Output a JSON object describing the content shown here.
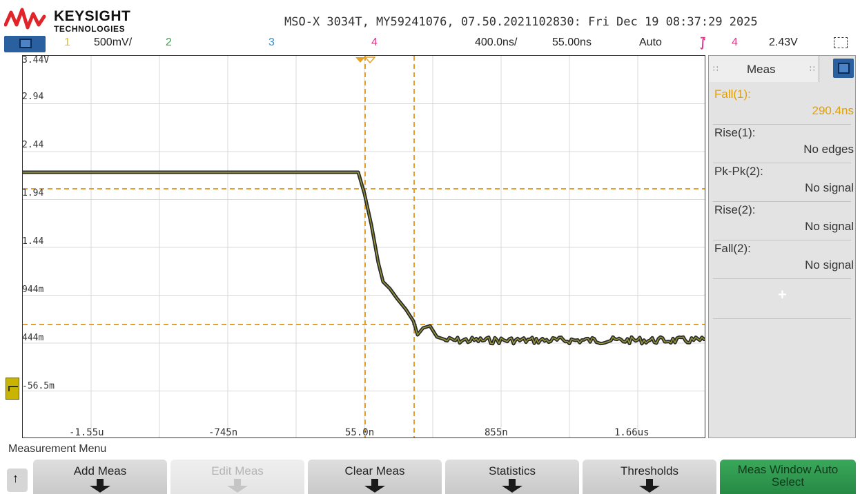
{
  "header": {
    "brand": "KEYSIGHT",
    "brand_sub": "TECHNOLOGIES",
    "device_info": "MSO-X 3034T, MY59241076, 07.50.2021102830: Fri Dec 19 08:37:29 2025"
  },
  "status_bar": {
    "ch1_label": "1",
    "ch1_scale": "500mV/",
    "ch2_label": "2",
    "ch3_label": "3",
    "ch4_label": "4",
    "timebase": "400.0ns/",
    "delay": "55.00ns",
    "trigger_mode": "Auto",
    "trigger_source": "4",
    "trigger_level": "2.43V"
  },
  "graticule": {
    "y_labels": [
      "3.44V",
      "2.94",
      "2.44",
      "1.94",
      "1.44",
      "944m",
      "444m",
      "-56.5m"
    ],
    "x_labels": [
      "-1.55u",
      "-745n",
      "55.0n",
      "855n",
      "1.66us"
    ]
  },
  "meas_panel": {
    "title": "Meas",
    "items": [
      {
        "name": "Fall(1):",
        "value": "290.4ns"
      },
      {
        "name": "Rise(1):",
        "value": "No edges"
      },
      {
        "name": "Pk-Pk(2):",
        "value": "No signal"
      },
      {
        "name": "Rise(2):",
        "value": "No signal"
      },
      {
        "name": "Fall(2):",
        "value": "No signal"
      }
    ],
    "add_symbol": "+"
  },
  "menu": {
    "title": "Measurement Menu",
    "softkeys": [
      "Add Meas",
      "Edit Meas",
      "Clear Meas",
      "Statistics",
      "Thresholds",
      "Meas Window Auto Select"
    ]
  },
  "colors": {
    "channel1": "#e6c500",
    "channel2": "#2ea84c",
    "channel3": "#2f8fd2",
    "channel4": "#e0358a",
    "cursor": "#e8a020",
    "accent_blue": "#2a5fa0",
    "meas_active": "#e3a100",
    "softkey_green": "#2f9a50"
  },
  "icons": [
    "menu-icon",
    "zoom-select-icon",
    "ground-reference-icon",
    "up-arrow-icon",
    "meas-panel-menu-icon",
    "trigger-edge-icon"
  ]
}
